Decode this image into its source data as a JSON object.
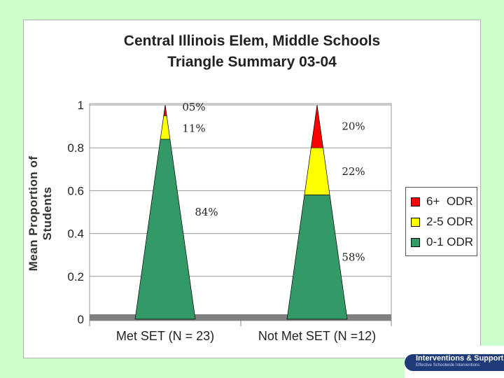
{
  "chart_data": {
    "type": "area",
    "title": [
      "Central Illinois Elem, Middle Schools",
      "Triangle Summary 03-04"
    ],
    "xlabel": "",
    "ylabel": [
      "Mean Proportion of",
      "Students"
    ],
    "ylim": [
      0,
      1
    ],
    "yticks": [
      "0",
      "0.2",
      "0.4",
      "0.6",
      "0.8",
      "1"
    ],
    "categories": [
      "Met SET (N = 23)",
      "Not Met SET (N =12)"
    ],
    "series": [
      {
        "name": "0-1 ODR",
        "color": "#339966",
        "values": [
          0.84,
          0.58
        ]
      },
      {
        "name": "2-5 ODR",
        "color": "#ffff00",
        "values": [
          0.11,
          0.22
        ]
      },
      {
        "name": "6+  ODR",
        "color": "#ff0000",
        "values": [
          0.05,
          0.2
        ]
      }
    ],
    "data_labels": [
      [
        "84%",
        "11%",
        "05%"
      ],
      [
        "58%",
        "22%",
        "20%"
      ]
    ],
    "legend_position": "right",
    "grid": true
  },
  "logo": {
    "main": "Interventions & Supports",
    "sub": "Effective Schoolwide Interventions"
  }
}
